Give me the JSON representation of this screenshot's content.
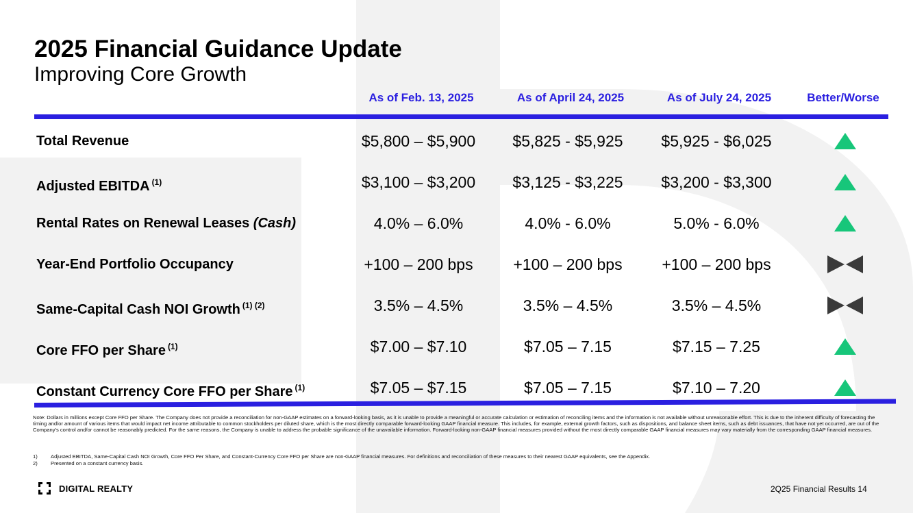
{
  "title": "2025 Financial Guidance Update",
  "subtitle": "Improving Core Growth",
  "columns": [
    "As of Feb. 13, 2025",
    "As of April 24, 2025",
    "As of July 24, 2025",
    "Better/Worse"
  ],
  "rows": [
    {
      "label": "Total Revenue",
      "sup": "",
      "italic": "",
      "values": [
        "$5,800 – $5,900",
        "$5,825 - $5,925",
        "$5,925 - $6,025"
      ],
      "indicator": "better",
      "indicator_icon": "up-triangle-icon"
    },
    {
      "label": "Adjusted EBITDA",
      "sup": "(1)",
      "italic": "",
      "values": [
        "$3,100 – $3,200",
        "$3,125 - $3,225",
        "$3,200 - $3,300"
      ],
      "indicator": "better",
      "indicator_icon": "up-triangle-icon"
    },
    {
      "label": "Rental Rates on Renewal Leases ",
      "sup": "",
      "italic": "(Cash)",
      "values": [
        "4.0% – 6.0%",
        "4.0% - 6.0%",
        "5.0% - 6.0%"
      ],
      "indicator": "better",
      "indicator_icon": "up-triangle-icon"
    },
    {
      "label": "Year-End Portfolio Occupancy",
      "sup": "",
      "italic": "",
      "values": [
        "+100 – 200 bps",
        "+100 – 200 bps",
        "+100 – 200 bps"
      ],
      "indicator": "unchanged",
      "indicator_icon": "bowtie-icon"
    },
    {
      "label": "Same-Capital Cash NOI Growth",
      "sup": "(1) (2)",
      "italic": "",
      "values": [
        "3.5% – 4.5%",
        "3.5% – 4.5%",
        "3.5% – 4.5%"
      ],
      "indicator": "unchanged",
      "indicator_icon": "bowtie-icon"
    },
    {
      "label": "Core FFO per Share",
      "sup": "(1)",
      "italic": "",
      "values": [
        "$7.00 – $7.10",
        "$7.05 – 7.15",
        "$7.15 – 7.25"
      ],
      "indicator": "better",
      "indicator_icon": "up-triangle-icon"
    },
    {
      "label": "Constant Currency Core FFO per Share",
      "sup": "(1)",
      "italic": "",
      "values": [
        "$7.05 – $7.15",
        "$7.05 – 7.15",
        "$7.10 – 7.20"
      ],
      "indicator": "better",
      "indicator_icon": "up-triangle-icon"
    }
  ],
  "note": "Note: Dollars in millions except Core FFO per Share. The Company does not provide a reconciliation for non-GAAP estimates on a forward-looking basis, as it is unable to provide a meaningful or accurate calculation or estimation of reconciling items and the information is not available without unreasonable effort. This is due to the inherent difficulty of forecasting the timing and/or amount of various items that would impact net income attributable to common stockholders per diluted share, which is the most directly comparable forward-looking GAAP financial measure. This includes, for example, external growth factors, such as dispositions, and balance sheet items, such as debt issuances, that have not yet occurred, are out of the Company's control and/or cannot be reasonably predicted. For the same reasons, the Company is unable to address the probable significance of the unavailable information. Forward-looking non-GAAP financial measures provided without the most directly comparable GAAP financial measures may vary materially from the corresponding GAAP financial measures.",
  "footnotes": [
    {
      "num": "1)",
      "text": "Adjusted EBITDA, Same-Capital Cash NOI Growth, Core FFO Per Share, and Constant-Currency Core FFO per Share are non-GAAP financial measures. For definitions and reconciliation of these measures to their nearest GAAP equivalents, see the Appendix."
    },
    {
      "num": "2)",
      "text": "Presented on a constant currency basis."
    }
  ],
  "logo_text": "DIGITAL REALTY",
  "footer": "2Q25 Financial Results  14",
  "colors": {
    "accent": "#2a1fe0",
    "better": "#17c67a",
    "unchanged": "#3a3a3a",
    "watermark": "#f2f2f2"
  }
}
